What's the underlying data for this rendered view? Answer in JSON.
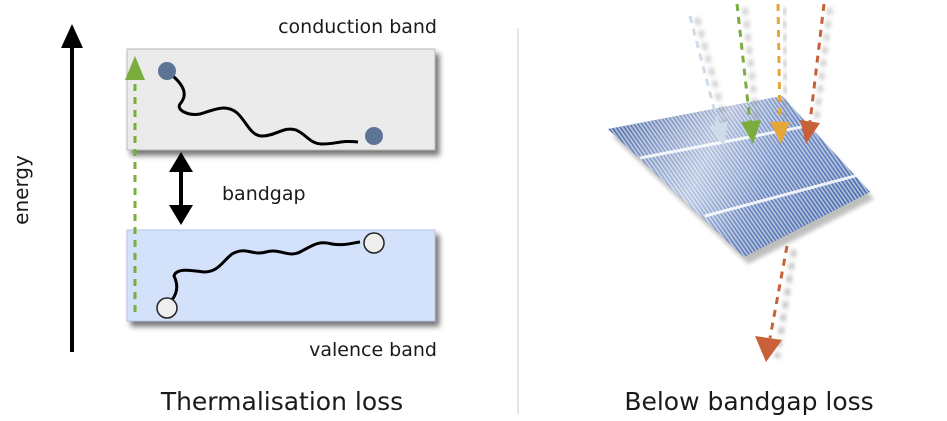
{
  "diagram": {
    "energy_axis_label": "energy",
    "conduction_band_label": "conduction band",
    "valence_band_label": "valence band",
    "bandgap_label": "bandgap",
    "left_caption": "Thermalisation loss",
    "right_caption": "Below bandgap loss"
  },
  "colors": {
    "conduction_band_fill": "#ebebeb",
    "valence_band_fill": "#d3e1fb",
    "electron_fill": "#5e7495",
    "hole_fill": "#eeeeee",
    "photon_green": "#7aad3e",
    "photon_orange": "#e6a63a",
    "photon_red": "#c8613a",
    "photon_pale_blue": "#cfdbe8",
    "panel_blue": "#3a5c9c",
    "divider": "#cccccc"
  }
}
